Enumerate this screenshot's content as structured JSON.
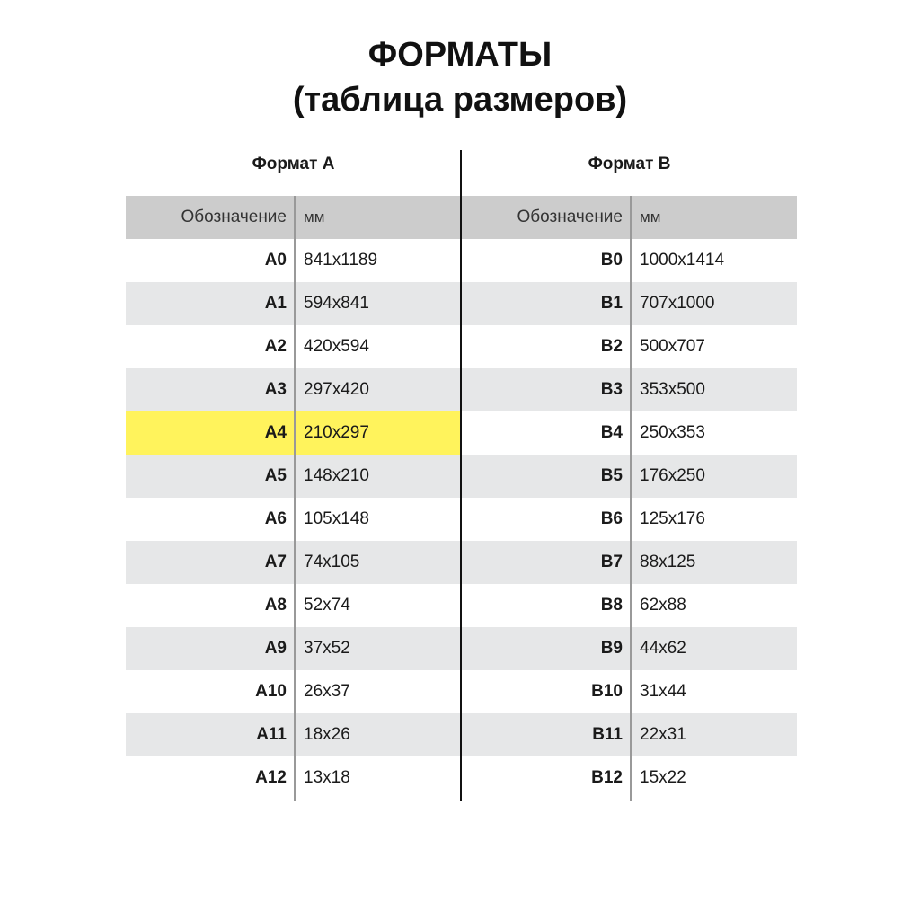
{
  "title_line1": "ФОРМАТЫ",
  "title_line2": "(таблица размеров)",
  "colors": {
    "header_bg": "#cccccc",
    "stripe_bg": "#e6e7e8",
    "highlight": "#fff35c"
  },
  "tables": [
    {
      "title": "Формат А",
      "header": {
        "designation": "Обозначение",
        "mm": "мм"
      },
      "highlighted": "A4",
      "rows": [
        {
          "designation": "A0",
          "mm": "841x1189"
        },
        {
          "designation": "A1",
          "mm": "594x841"
        },
        {
          "designation": "A2",
          "mm": "420x594"
        },
        {
          "designation": "A3",
          "mm": "297x420"
        },
        {
          "designation": "A4",
          "mm": "210x297"
        },
        {
          "designation": "A5",
          "mm": "148x210"
        },
        {
          "designation": "A6",
          "mm": "105x148"
        },
        {
          "designation": "A7",
          "mm": "74x105"
        },
        {
          "designation": "A8",
          "mm": "52x74"
        },
        {
          "designation": "A9",
          "mm": "37x52"
        },
        {
          "designation": "A10",
          "mm": "26x37"
        },
        {
          "designation": "A11",
          "mm": "18x26"
        },
        {
          "designation": "A12",
          "mm": "13x18"
        }
      ]
    },
    {
      "title": "Формат B",
      "header": {
        "designation": "Обозначение",
        "mm": "мм"
      },
      "highlighted": "",
      "rows": [
        {
          "designation": "B0",
          "mm": "1000x1414"
        },
        {
          "designation": "B1",
          "mm": "707x1000"
        },
        {
          "designation": "B2",
          "mm": "500x707"
        },
        {
          "designation": "B3",
          "mm": "353x500"
        },
        {
          "designation": "B4",
          "mm": "250x353"
        },
        {
          "designation": "B5",
          "mm": "176x250"
        },
        {
          "designation": "B6",
          "mm": "125x176"
        },
        {
          "designation": "B7",
          "mm": "88x125"
        },
        {
          "designation": "B8",
          "mm": "62x88"
        },
        {
          "designation": "B9",
          "mm": "44x62"
        },
        {
          "designation": "B10",
          "mm": "31x44"
        },
        {
          "designation": "B11",
          "mm": "22x31"
        },
        {
          "designation": "B12",
          "mm": "15x22"
        }
      ]
    }
  ]
}
